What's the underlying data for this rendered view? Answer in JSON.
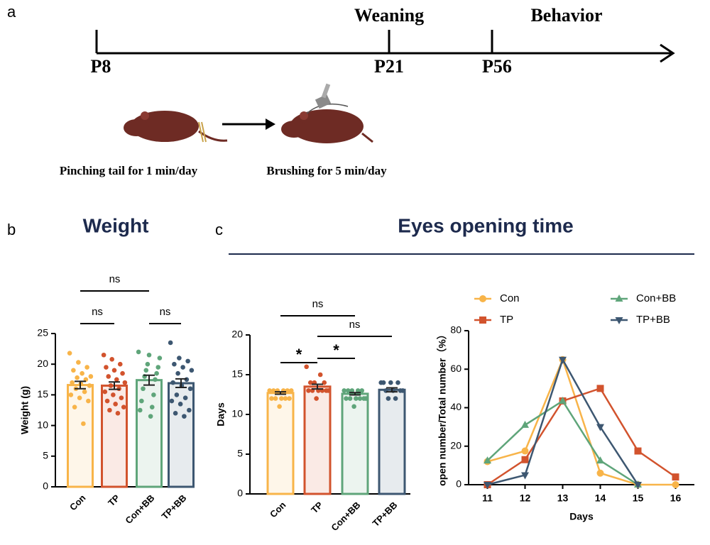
{
  "timeline": {
    "label": "a",
    "events": [
      {
        "label": "P8"
      },
      {
        "label": "P21",
        "above": "Weaning"
      },
      {
        "label": "P56",
        "above": "Behavior"
      }
    ],
    "steps": [
      "Pinching tail for 1 min/day",
      "Brushing for 5 min/day"
    ]
  },
  "panel_b": {
    "label": "b"
  },
  "panel_c": {
    "label": "c",
    "title": "Eyes opening time"
  },
  "chart_data": [
    {
      "type": "bar",
      "title": "Weight",
      "ylabel": "Weight (g)",
      "categories": [
        "Con",
        "TP",
        "Con+BB",
        "TP+BB"
      ],
      "colors": [
        "#f8b449",
        "#d2532d",
        "#5fa57a",
        "#3d5771"
      ],
      "values": [
        16.6,
        16.5,
        17.4,
        16.9
      ],
      "errors": [
        0.6,
        0.6,
        0.8,
        0.7
      ],
      "points": [
        [
          21.8,
          20.3,
          19.5,
          19,
          18.5,
          18,
          17.8,
          17.5,
          17,
          16.8,
          16.5,
          16,
          15.5,
          15,
          14.5,
          14,
          13,
          10.3
        ],
        [
          21.5,
          20.8,
          20,
          19.5,
          19,
          18.5,
          18,
          17.5,
          17,
          16.5,
          16,
          15.5,
          15,
          14.5,
          14,
          13.5,
          13,
          12.5,
          12
        ],
        [
          22,
          21.5,
          21,
          20,
          19.5,
          19,
          18.5,
          18,
          17.5,
          16,
          15,
          14,
          13,
          12.5,
          11.5
        ],
        [
          23.5,
          21,
          20.5,
          20,
          19.5,
          19,
          18.5,
          17.5,
          17,
          16.5,
          16,
          15,
          14.5,
          14,
          13.5,
          12.5,
          12,
          11.5
        ]
      ],
      "ylim": [
        0,
        25
      ],
      "yticks": [
        0,
        5,
        10,
        15,
        20,
        25
      ],
      "brackets": [
        {
          "label": "ns",
          "from": 0,
          "to": 2
        },
        {
          "label": "ns",
          "from": 0,
          "to": 1
        },
        {
          "label": "ns",
          "from": 2,
          "to": 3
        }
      ]
    },
    {
      "type": "bar",
      "ylabel": "Days",
      "categories": [
        "Con",
        "TP",
        "Con+BB",
        "TP+BB"
      ],
      "colors": [
        "#f8b449",
        "#d2532d",
        "#5fa57a",
        "#3d5771"
      ],
      "values": [
        12.7,
        13.5,
        12.6,
        13.1
      ],
      "errors": [
        0.15,
        0.3,
        0.15,
        0.25
      ],
      "points": [
        [
          13,
          13,
          13,
          13,
          13,
          13,
          12,
          12,
          12,
          12,
          12,
          11
        ],
        [
          16,
          15,
          14,
          14,
          14,
          13,
          13,
          13,
          13,
          13,
          13,
          12
        ],
        [
          13,
          13,
          13,
          13,
          13,
          12,
          12,
          12,
          12,
          12,
          12,
          11
        ],
        [
          14,
          14,
          14,
          14,
          13,
          13,
          13,
          13,
          12,
          12
        ]
      ],
      "ylim": [
        0,
        20
      ],
      "yticks": [
        0,
        5,
        10,
        15,
        20
      ],
      "brackets": [
        {
          "label": "ns",
          "from": 0,
          "to": 2
        },
        {
          "label": "ns",
          "from": 1,
          "to": 3
        },
        {
          "label": "*",
          "from": 0,
          "to": 1
        },
        {
          "label": "*",
          "from": 1,
          "to": 2
        }
      ]
    },
    {
      "type": "line",
      "xlabel": "Days",
      "ylabel": "open number/Total number（%）",
      "x": [
        11,
        12,
        13,
        14,
        15,
        16
      ],
      "series": [
        {
          "name": "Con",
          "color": "#f8b449",
          "marker": "circle",
          "values": [
            12,
            17.5,
            65,
            6,
            0,
            0
          ]
        },
        {
          "name": "TP",
          "color": "#d2532d",
          "marker": "square",
          "values": [
            0,
            13,
            43.5,
            50,
            17.5,
            4
          ]
        },
        {
          "name": "Con+BB",
          "color": "#5fa57a",
          "marker": "triangle-up",
          "values": [
            12.5,
            31,
            43.5,
            12.5,
            0,
            null
          ]
        },
        {
          "name": "TP+BB",
          "color": "#3d5771",
          "marker": "triangle-down",
          "values": [
            0,
            5,
            65,
            30,
            0,
            null
          ]
        }
      ],
      "xlim": [
        10.5,
        16.5
      ],
      "xticks": [
        11,
        12,
        13,
        14,
        15,
        16
      ],
      "ylim": [
        0,
        80
      ],
      "yticks": [
        0,
        20,
        40,
        60,
        80
      ]
    }
  ]
}
